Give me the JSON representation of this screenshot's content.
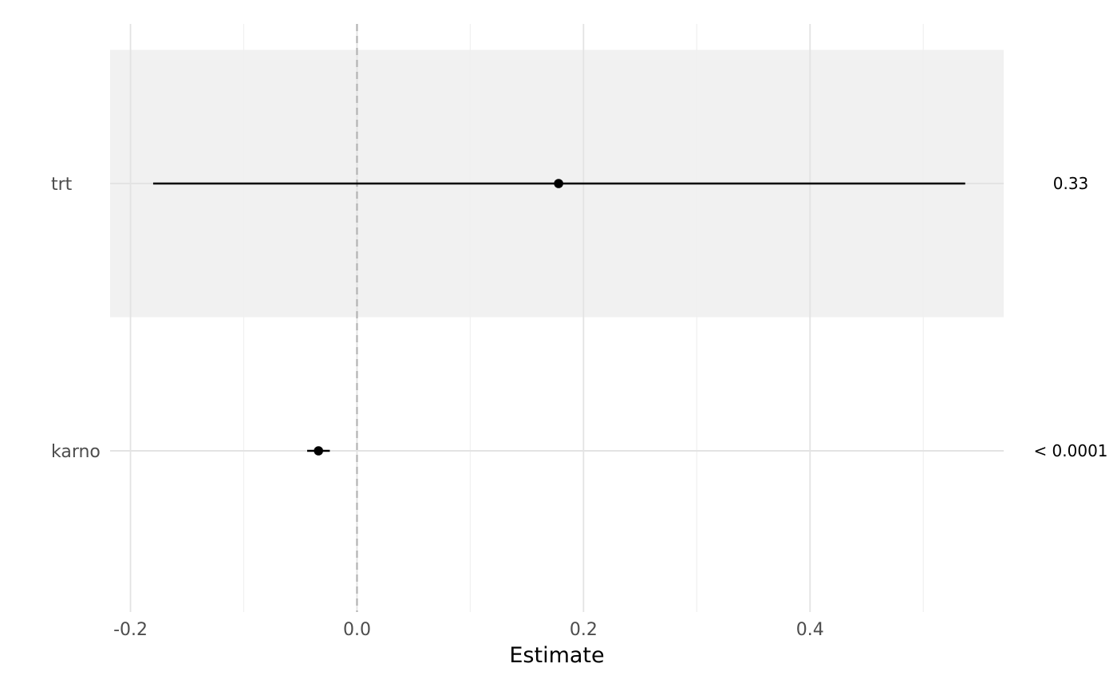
{
  "chart_data": {
    "type": "forest",
    "xlabel": "Estimate",
    "ylabel": "",
    "xlim": [
      -0.218,
      0.571
    ],
    "x_ticks": [
      -0.2,
      0.0,
      0.2,
      0.4
    ],
    "x_tick_labels": [
      "-0.2",
      "0.0",
      "0.2",
      "0.4"
    ],
    "reference_line": 0.0,
    "grid": true,
    "terms": [
      {
        "label": "trt",
        "estimate": 0.178,
        "conf_low": -0.18,
        "conf_high": 0.537,
        "p_value": "0.33",
        "shaded": true
      },
      {
        "label": "karno",
        "estimate": -0.034,
        "conf_low": -0.044,
        "conf_high": -0.024,
        "p_value": "< 0.0001",
        "shaded": false
      }
    ]
  },
  "colors": {
    "shade": "#f1f1f1",
    "grid_major": "#e3e3e3",
    "grid_minor": "#f0f0f0",
    "reference_line": "#b3b3b3",
    "point": "#000000"
  }
}
